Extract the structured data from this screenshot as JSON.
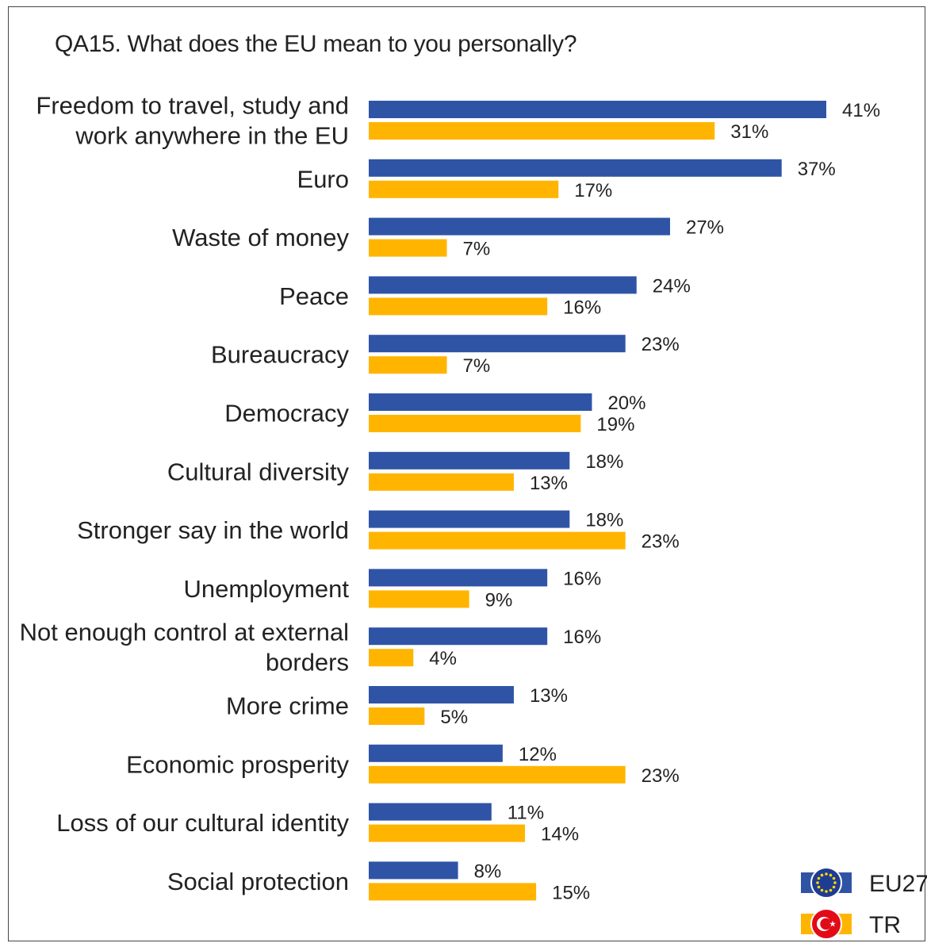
{
  "chart_data": {
    "type": "bar",
    "orientation": "horizontal",
    "title": "QA15. What does the EU mean to you personally?",
    "categories": [
      "Freedom to travel, study and work anywhere in the EU",
      "Euro",
      "Waste of money",
      "Peace",
      "Bureaucracy",
      "Democracy",
      "Cultural diversity",
      "Stronger say in the world",
      "Unemployment",
      "Not enough control at external borders",
      "More crime",
      "Economic prosperity",
      "Loss of our cultural identity",
      "Social protection"
    ],
    "category_lines": [
      [
        "Freedom to travel, study and",
        "work anywhere in the EU"
      ],
      [
        "Euro"
      ],
      [
        "Waste of money"
      ],
      [
        "Peace"
      ],
      [
        "Bureaucracy"
      ],
      [
        "Democracy"
      ],
      [
        "Cultural diversity"
      ],
      [
        "Stronger say in the world"
      ],
      [
        "Unemployment"
      ],
      [
        "Not enough control at external",
        "borders"
      ],
      [
        "More crime"
      ],
      [
        "Economic prosperity"
      ],
      [
        "Loss of our cultural identity"
      ],
      [
        "Social protection"
      ]
    ],
    "series": [
      {
        "name": "EU27",
        "color": "#2F54A6",
        "icon": "eu-flag-icon",
        "values": [
          41,
          37,
          27,
          24,
          23,
          20,
          18,
          18,
          16,
          16,
          13,
          12,
          11,
          8
        ]
      },
      {
        "name": "TR",
        "color": "#FFB500",
        "icon": "turkey-flag-icon",
        "values": [
          31,
          17,
          7,
          16,
          7,
          19,
          13,
          23,
          9,
          4,
          5,
          23,
          14,
          15
        ]
      }
    ],
    "value_suffix": "%",
    "xlim": [
      0,
      41
    ],
    "grid": false,
    "legend": "bottom-right"
  }
}
